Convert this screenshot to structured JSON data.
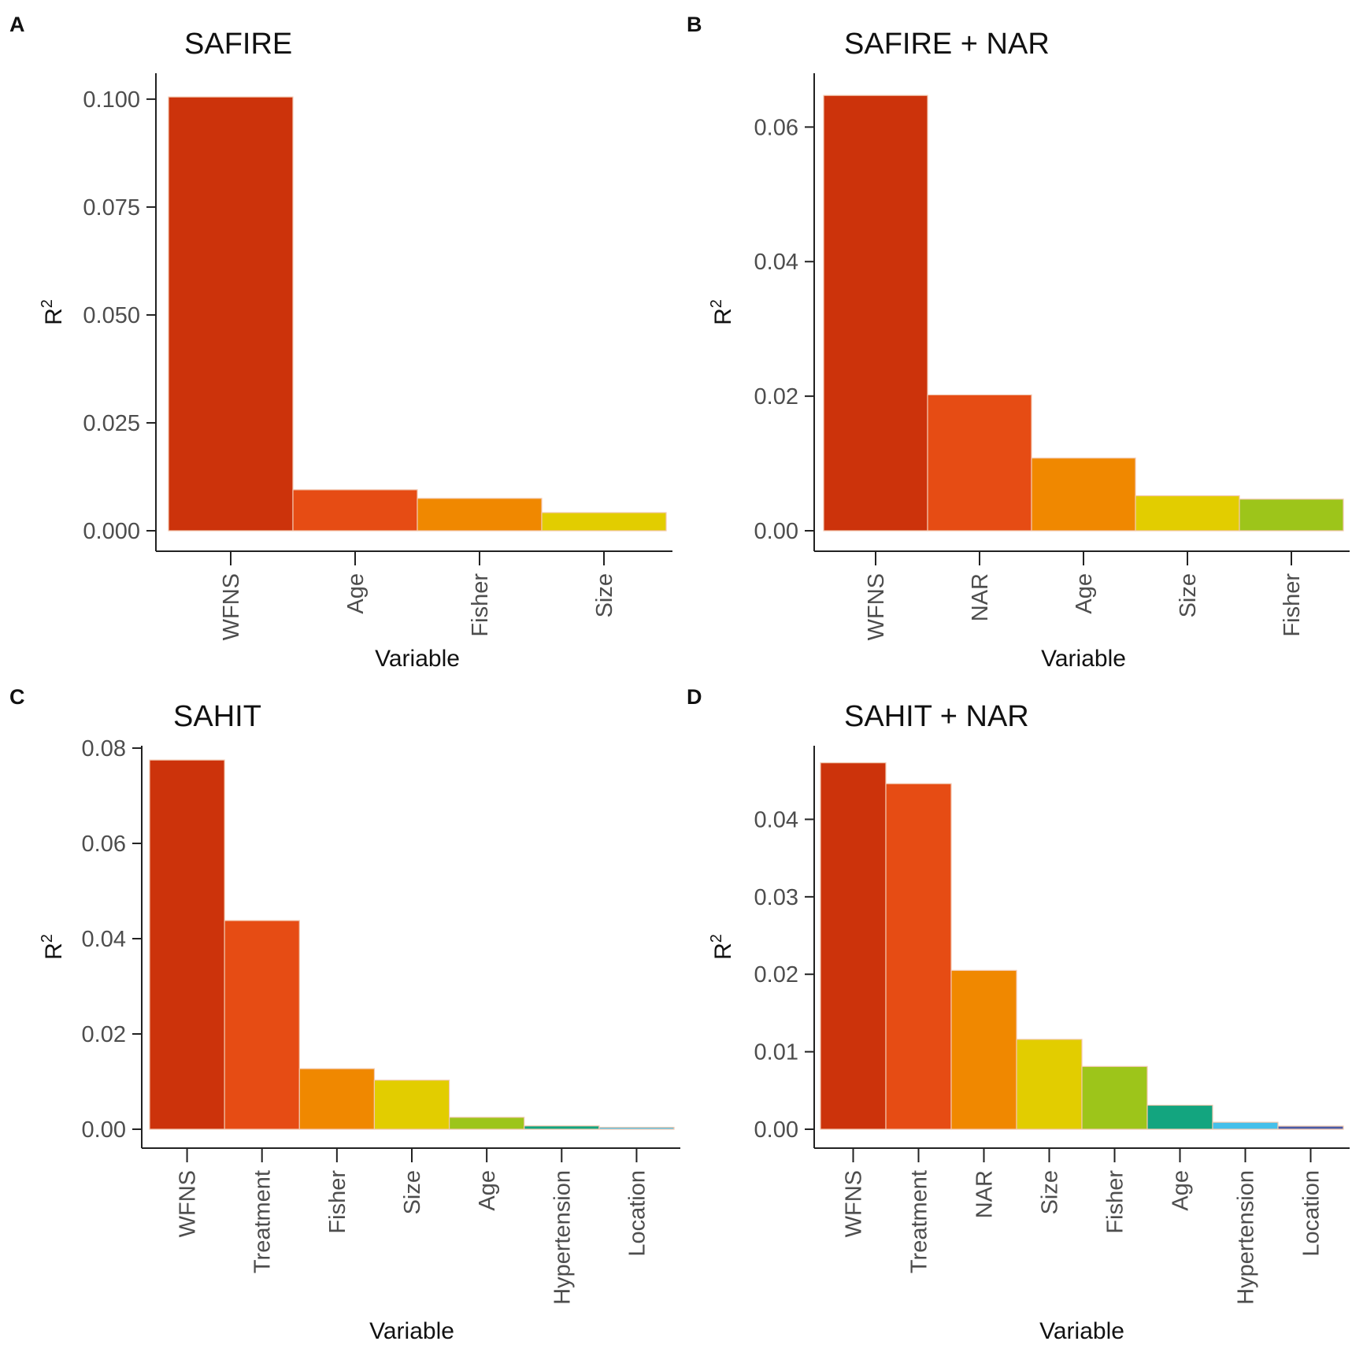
{
  "chart_data": [
    {
      "panel": "A",
      "type": "bar",
      "title": "SAFIRE",
      "xlabel": "Variable",
      "ylabel": "R",
      "ylabel_sup": "2",
      "ylim": [
        -0.004,
        0.106
      ],
      "yticks": [
        "0.000",
        "0.025",
        "0.050",
        "0.075",
        "0.100"
      ],
      "ytick_values": [
        0,
        0.025,
        0.05,
        0.075,
        0.1
      ],
      "categories": [
        "WFNS",
        "Age",
        "Fisher",
        "Size"
      ],
      "values": [
        0.1005,
        0.0095,
        0.0075,
        0.0042
      ],
      "colors": [
        "#cc330b",
        "#e64c14",
        "#f08800",
        "#e2cd00"
      ]
    },
    {
      "panel": "B",
      "type": "bar",
      "title": "SAFIRE + NAR",
      "xlabel": "Variable",
      "ylabel": "R",
      "ylabel_sup": "2",
      "ylim": [
        -0.003,
        0.068
      ],
      "yticks": [
        "0.00",
        "0.02",
        "0.04",
        "0.06"
      ],
      "ytick_values": [
        0,
        0.02,
        0.04,
        0.06
      ],
      "categories": [
        "WFNS",
        "NAR",
        "Age",
        "Size",
        "Fisher"
      ],
      "values": [
        0.0647,
        0.0202,
        0.0108,
        0.0052,
        0.0047
      ],
      "colors": [
        "#cc330b",
        "#e64c14",
        "#f08800",
        "#e2cd00",
        "#9dc51a"
      ]
    },
    {
      "panel": "C",
      "type": "bar",
      "title": "SAHIT",
      "xlabel": "Variable",
      "ylabel": "R",
      "ylabel_sup": "2",
      "ylim": [
        -0.004,
        0.0805
      ],
      "yticks": [
        "0.00",
        "0.02",
        "0.04",
        "0.06",
        "0.08"
      ],
      "ytick_values": [
        0,
        0.02,
        0.04,
        0.06,
        0.08
      ],
      "categories": [
        "WFNS",
        "Treatment",
        "Fisher",
        "Size",
        "Age",
        "Hypertension",
        "Location"
      ],
      "values": [
        0.0775,
        0.0438,
        0.0127,
        0.0103,
        0.0025,
        0.0007,
        0.0004
      ],
      "colors": [
        "#cc330b",
        "#e64c14",
        "#f08800",
        "#e2cd00",
        "#9dc51a",
        "#13a57f",
        "#46c0ea"
      ]
    },
    {
      "panel": "D",
      "type": "bar",
      "title": "SAHIT + NAR",
      "xlabel": "Variable",
      "ylabel": "R",
      "ylabel_sup": "2",
      "ylim": [
        -0.0025,
        0.0495
      ],
      "yticks": [
        "0.00",
        "0.01",
        "0.02",
        "0.03",
        "0.04"
      ],
      "ytick_values": [
        0,
        0.01,
        0.02,
        0.03,
        0.04
      ],
      "categories": [
        "WFNS",
        "Treatment",
        "NAR",
        "Size",
        "Fisher",
        "Age",
        "Hypertension",
        "Location"
      ],
      "values": [
        0.0473,
        0.0446,
        0.0205,
        0.0116,
        0.0081,
        0.0031,
        0.0009,
        0.0004
      ],
      "colors": [
        "#cc330b",
        "#e64c14",
        "#f08800",
        "#e2cd00",
        "#9dc51a",
        "#13a57f",
        "#46c0ea",
        "#4a5ba6"
      ]
    }
  ]
}
